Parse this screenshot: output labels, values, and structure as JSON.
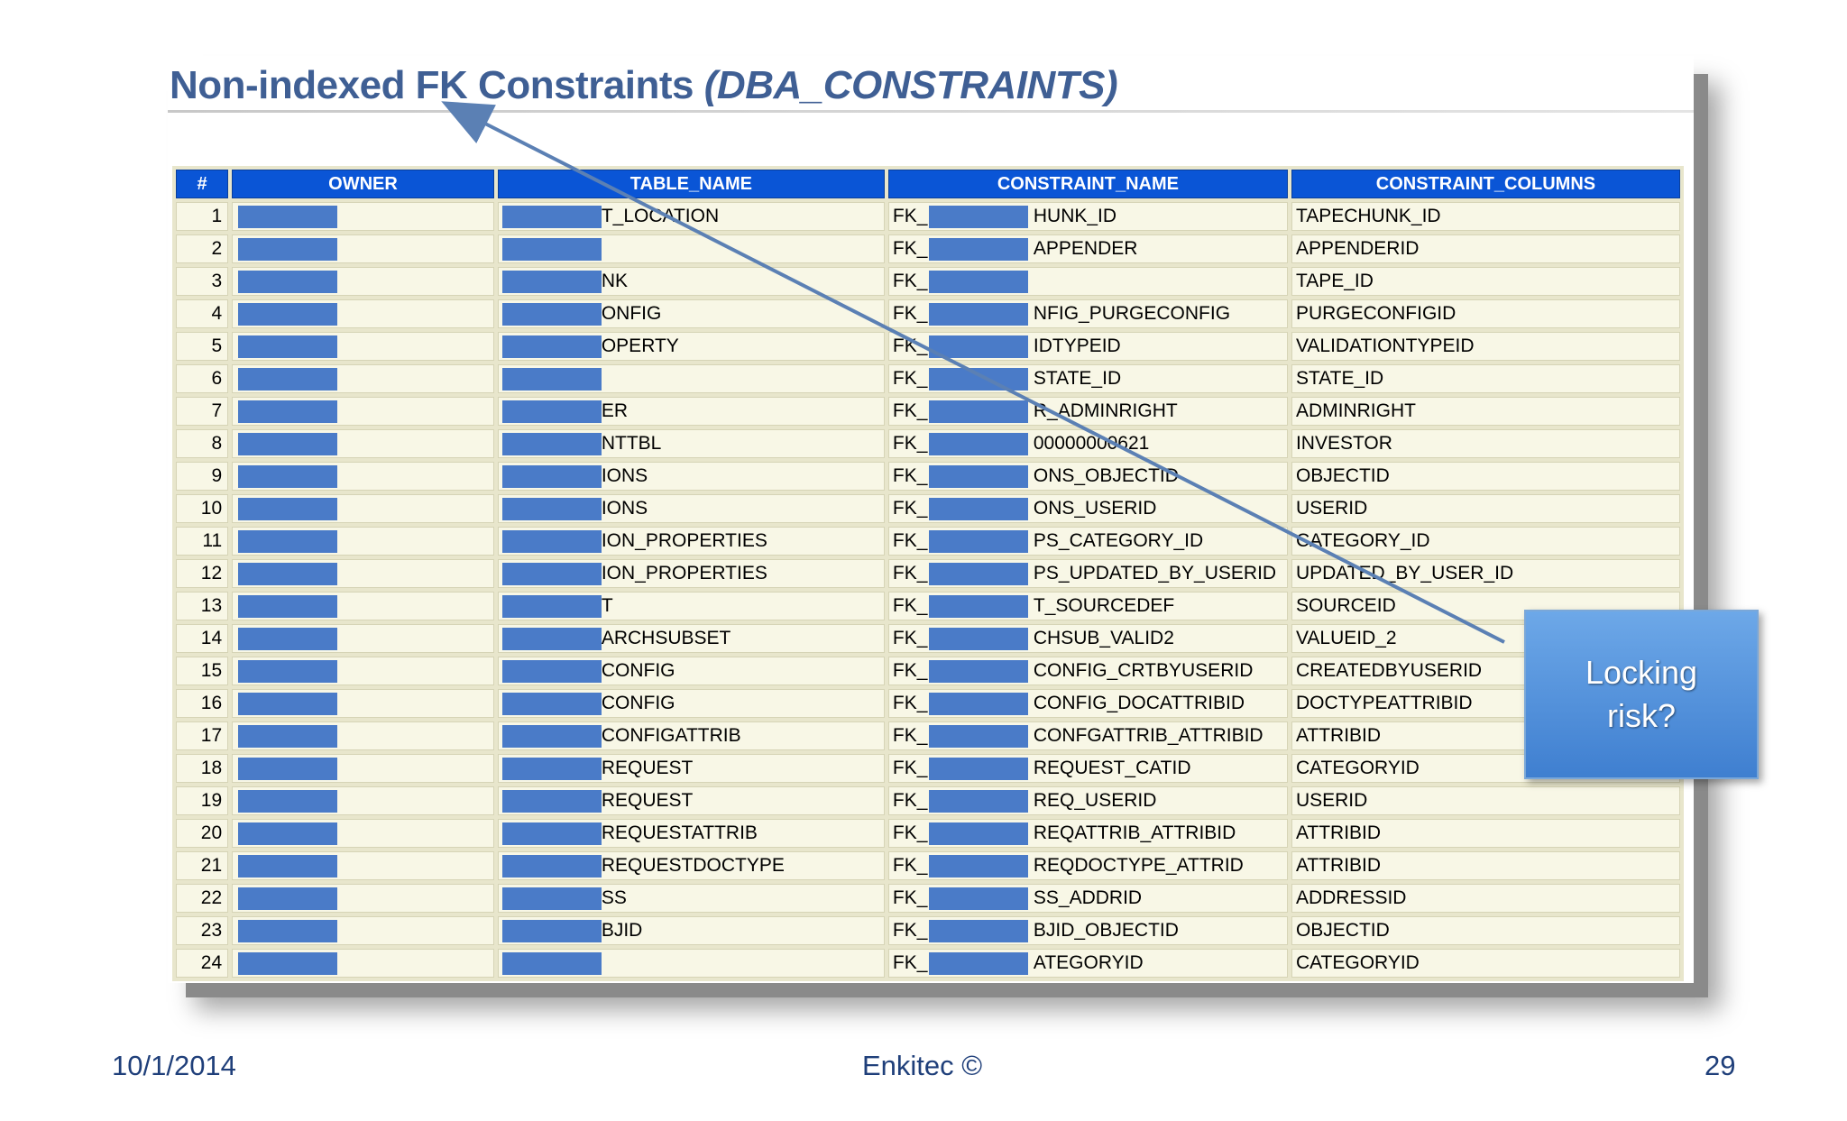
{
  "slide": {
    "title_main": "Non-indexed FK Constraints",
    "title_sub": "(DBA_CONSTRAINTS)",
    "callout": "Locking risk?",
    "footer_date": "10/1/2014",
    "footer_brand": "Enkitec ©",
    "footer_page": "29"
  },
  "colors": {
    "header_bg": "#0a55d6",
    "redaction": "#4a7bc8",
    "cell_bg": "#f8f7e6",
    "title": "#3f5f94"
  },
  "table": {
    "columns": [
      "#",
      "OWNER",
      "TABLE_NAME",
      "CONSTRAINT_NAME",
      "CONSTRAINT_COLUMNS"
    ],
    "rows": [
      {
        "num": "1",
        "owner": "",
        "table_name": "T_LOCATION",
        "constraint_prefix": "FK_",
        "constraint_name": "HUNK_ID",
        "constraint_columns": "TAPECHUNK_ID"
      },
      {
        "num": "2",
        "owner": "",
        "table_name": "",
        "constraint_prefix": "FK_",
        "constraint_name": "APPENDER",
        "constraint_columns": "APPENDERID"
      },
      {
        "num": "3",
        "owner": "",
        "table_name": "NK",
        "constraint_prefix": "FK_",
        "constraint_name": "",
        "constraint_columns": "TAPE_ID"
      },
      {
        "num": "4",
        "owner": "",
        "table_name": "ONFIG",
        "constraint_prefix": "FK_",
        "constraint_name": "NFIG_PURGECONFIG",
        "constraint_columns": "PURGECONFIGID"
      },
      {
        "num": "5",
        "owner": "",
        "table_name": "OPERTY",
        "constraint_prefix": "FK_",
        "constraint_name": "IDTYPEID",
        "constraint_columns": "VALIDATIONTYPEID"
      },
      {
        "num": "6",
        "owner": "",
        "table_name": "",
        "constraint_prefix": "FK_",
        "constraint_name": "STATE_ID",
        "constraint_columns": "STATE_ID"
      },
      {
        "num": "7",
        "owner": "",
        "table_name": "ER",
        "constraint_prefix": "FK_",
        "constraint_name": "R_ADMINRIGHT",
        "constraint_columns": "ADMINRIGHT"
      },
      {
        "num": "8",
        "owner": "",
        "table_name": "NTTBL",
        "constraint_prefix": "FK_",
        "constraint_name": "00000000621",
        "constraint_columns": "INVESTOR"
      },
      {
        "num": "9",
        "owner": "",
        "table_name": "IONS",
        "constraint_prefix": "FK_",
        "constraint_name": "ONS_OBJECTID",
        "constraint_columns": "OBJECTID"
      },
      {
        "num": "10",
        "owner": "",
        "table_name": "IONS",
        "constraint_prefix": "FK_",
        "constraint_name": "ONS_USERID",
        "constraint_columns": "USERID"
      },
      {
        "num": "11",
        "owner": "",
        "table_name": "ION_PROPERTIES",
        "constraint_prefix": "FK_",
        "constraint_name": "PS_CATEGORY_ID",
        "constraint_columns": "CATEGORY_ID"
      },
      {
        "num": "12",
        "owner": "",
        "table_name": "ION_PROPERTIES",
        "constraint_prefix": "FK_",
        "constraint_name": "PS_UPDATED_BY_USERID",
        "constraint_columns": "UPDATED_BY_USER_ID"
      },
      {
        "num": "13",
        "owner": "",
        "table_name": "T",
        "constraint_prefix": "FK_",
        "constraint_name": "T_SOURCEDEF",
        "constraint_columns": "SOURCEID"
      },
      {
        "num": "14",
        "owner": "",
        "table_name": "ARCHSUBSET",
        "constraint_prefix": "FK_",
        "constraint_name": "CHSUB_VALID2",
        "constraint_columns": "VALUEID_2"
      },
      {
        "num": "15",
        "owner": "",
        "table_name": "CONFIG",
        "constraint_prefix": "FK_",
        "constraint_name": "CONFIG_CRTBYUSERID",
        "constraint_columns": "CREATEDBYUSERID"
      },
      {
        "num": "16",
        "owner": "",
        "table_name": "CONFIG",
        "constraint_prefix": "FK_",
        "constraint_name": "CONFIG_DOCATTRIBID",
        "constraint_columns": "DOCTYPEATTRIBID"
      },
      {
        "num": "17",
        "owner": "",
        "table_name": "CONFIGATTRIB",
        "constraint_prefix": "FK_",
        "constraint_name": "CONFGATTRIB_ATTRIBID",
        "constraint_columns": "ATTRIBID"
      },
      {
        "num": "18",
        "owner": "",
        "table_name": "REQUEST",
        "constraint_prefix": "FK_",
        "constraint_name": "REQUEST_CATID",
        "constraint_columns": "CATEGORYID"
      },
      {
        "num": "19",
        "owner": "",
        "table_name": "REQUEST",
        "constraint_prefix": "FK_",
        "constraint_name": "REQ_USERID",
        "constraint_columns": "USERID"
      },
      {
        "num": "20",
        "owner": "",
        "table_name": "REQUESTATTRIB",
        "constraint_prefix": "FK_",
        "constraint_name": "REQATTRIB_ATTRIBID",
        "constraint_columns": "ATTRIBID"
      },
      {
        "num": "21",
        "owner": "",
        "table_name": "REQUESTDOCTYPE",
        "constraint_prefix": "FK_",
        "constraint_name": "REQDOCTYPE_ATTRID",
        "constraint_columns": "ATTRIBID"
      },
      {
        "num": "22",
        "owner": "",
        "table_name": "SS",
        "constraint_prefix": "FK_",
        "constraint_name": "SS_ADDRID",
        "constraint_columns": "ADDRESSID"
      },
      {
        "num": "23",
        "owner": "",
        "table_name": "BJID",
        "constraint_prefix": "FK_",
        "constraint_name": "BJID_OBJECTID",
        "constraint_columns": "OBJECTID"
      },
      {
        "num": "24",
        "owner": "",
        "table_name": "",
        "constraint_prefix": "FK_",
        "constraint_name": "ATEGORYID",
        "constraint_columns": "CATEGORYID"
      }
    ]
  }
}
